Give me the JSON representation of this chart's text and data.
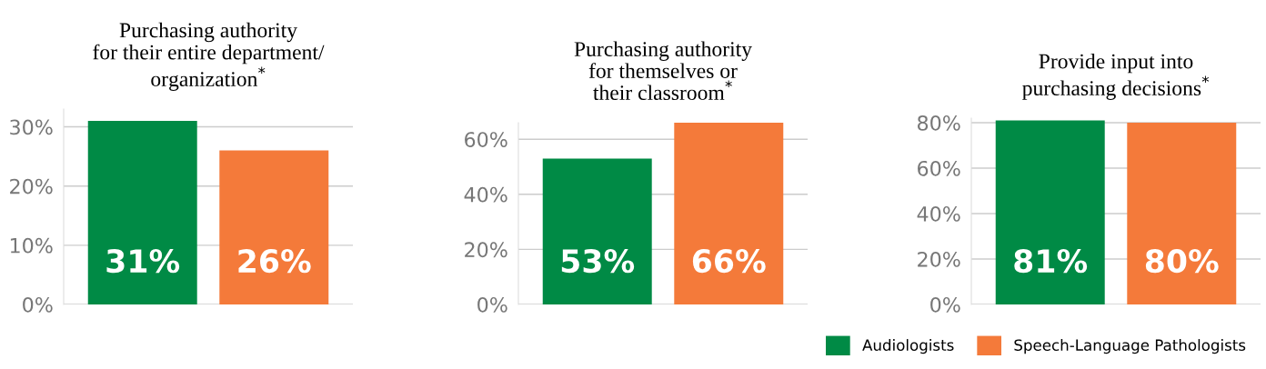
{
  "chart_data": [
    {
      "type": "bar",
      "title": "Purchasing authority\nfor their entire department/\norganization$^{*}$",
      "categories": [
        null
      ],
      "grid": "y",
      "data_labels": true,
      "ylim": [
        0,
        33
      ],
      "yticks": [
        {
          "value": 0,
          "label": "0%"
        },
        {
          "value": 10,
          "label": "10%"
        },
        {
          "value": 20,
          "label": "20%"
        },
        {
          "value": 30,
          "label": "30%"
        }
      ],
      "series": [
        {
          "color": "#008a45",
          "values": [
            31
          ],
          "value_labels": [
            "31%"
          ]
        },
        {
          "color": "#f47a3a",
          "values": [
            26
          ],
          "value_labels": [
            "26%"
          ]
        }
      ]
    },
    {
      "type": "bar",
      "title": "Purchasing authority\nfor themselves or\ntheir classroom$^{*}$",
      "categories": [
        null
      ],
      "grid": "y",
      "data_labels": true,
      "ylim": [
        0,
        66
      ],
      "yticks": [
        {
          "value": 0,
          "label": "0%"
        },
        {
          "value": 20,
          "label": "20%"
        },
        {
          "value": 40,
          "label": "40%"
        },
        {
          "value": 60,
          "label": "60%"
        }
      ],
      "series": [
        {
          "color": "#008a45",
          "values": [
            53
          ],
          "value_labels": [
            "53%"
          ]
        },
        {
          "color": "#f47a3a",
          "values": [
            66
          ],
          "value_labels": [
            "66%"
          ]
        }
      ]
    },
    {
      "type": "bar",
      "title": "Provide input into\npurchasing decisions$^{*}$",
      "categories": [
        null
      ],
      "grid": "y",
      "data_labels": true,
      "legend": "bottom",
      "ylim": [
        0,
        82
      ],
      "yticks": [
        {
          "value": 0,
          "label": "0%"
        },
        {
          "value": 20,
          "label": "20%"
        },
        {
          "value": 40,
          "label": "40%"
        },
        {
          "value": 60,
          "label": "60%"
        },
        {
          "value": 80,
          "label": "80%"
        }
      ],
      "series": [
        {
          "name": "Audiologists",
          "color": "#008a45",
          "values": [
            81
          ],
          "value_labels": [
            "81%"
          ]
        },
        {
          "name": "Speech-Language Pathologists",
          "color": "#f47a3a",
          "values": [
            80
          ],
          "value_labels": [
            "80%"
          ]
        }
      ]
    }
  ]
}
